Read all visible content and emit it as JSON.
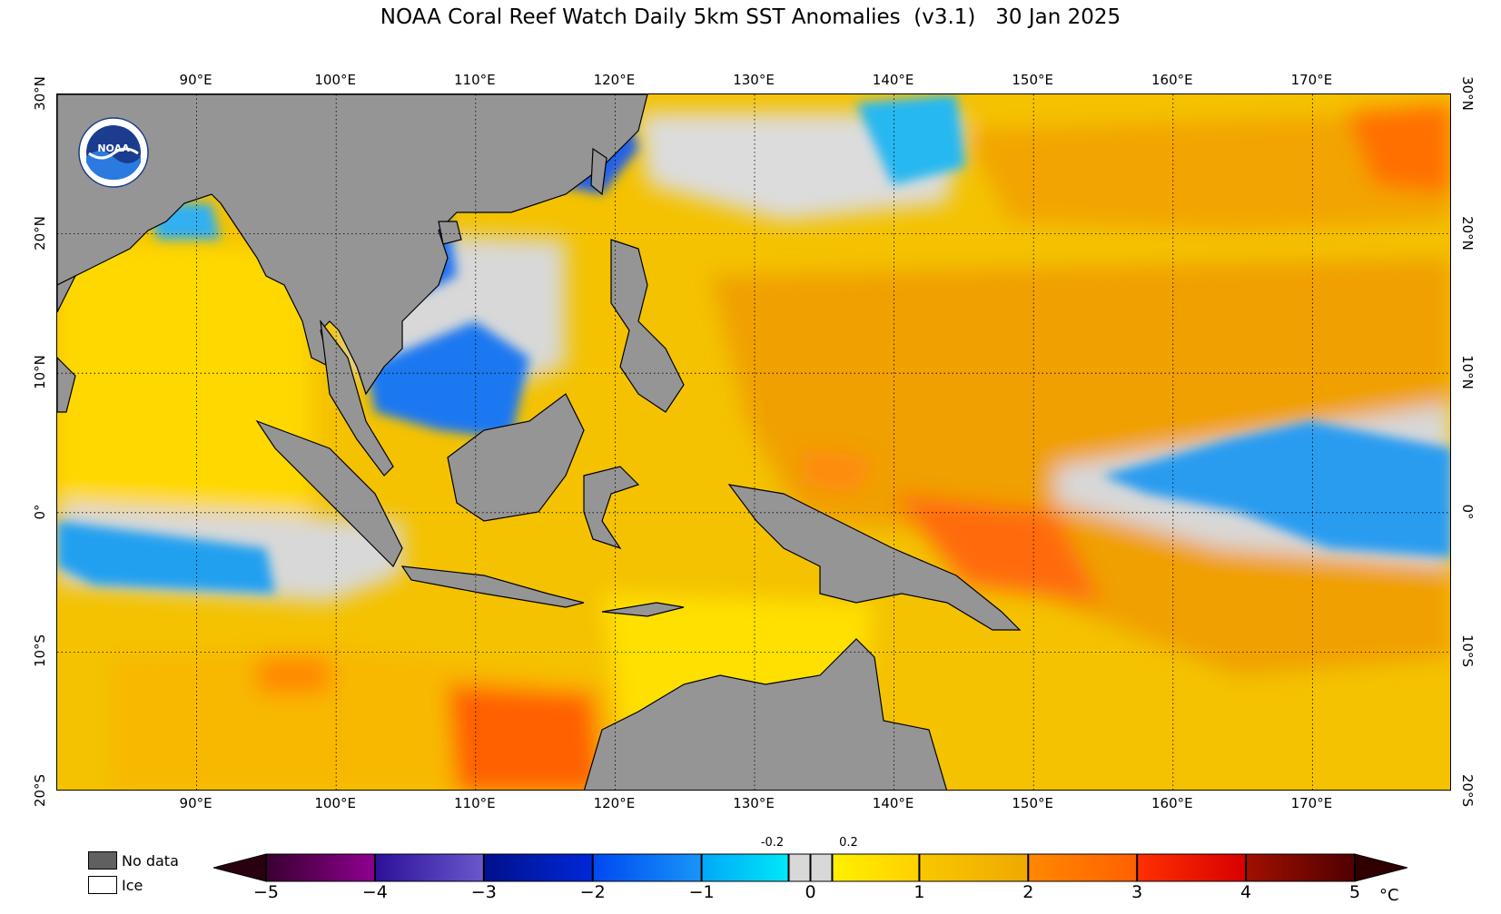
{
  "title": "NOAA Coral Reef Watch Daily 5km SST Anomalies  (v3.1)   30 Jan 2025",
  "map": {
    "lon_range": [
      80,
      180
    ],
    "lat_range": [
      -20,
      30
    ],
    "lon_labels": [
      "90°E",
      "100°E",
      "110°E",
      "120°E",
      "130°E",
      "140°E",
      "150°E",
      "160°E",
      "170°E"
    ],
    "lon_values": [
      90,
      100,
      110,
      120,
      130,
      140,
      150,
      160,
      170
    ],
    "lat_labels": [
      "30°N",
      "20°N",
      "10°N",
      "0°",
      "10°S",
      "20°S"
    ],
    "lat_values": [
      30,
      20,
      10,
      0,
      -10,
      -20
    ],
    "gridlines": "dotted",
    "land_color": "#959595",
    "logo_icon": "noaa-logo-icon"
  },
  "legend_key": {
    "no_data_label": "No data",
    "no_data_color": "#606060",
    "ice_label": "Ice",
    "ice_color": "#ffffff"
  },
  "colorbar": {
    "unit": "°C",
    "tick_labels": [
      "−5",
      "−4",
      "−3",
      "−2",
      "−1",
      "0",
      "1",
      "2",
      "3",
      "4",
      "5"
    ],
    "tick_values": [
      -5,
      -4,
      -3,
      -2,
      -1,
      0,
      1,
      2,
      3,
      4,
      5
    ],
    "small_labels": [
      "-0.2",
      "0.2"
    ],
    "small_values": [
      -0.2,
      0.2
    ],
    "segments": [
      {
        "from": -5,
        "to": -4,
        "colors": [
          "#3a0030",
          "#8e0090"
        ]
      },
      {
        "from": -4,
        "to": -3,
        "colors": [
          "#2c1098",
          "#6a58cc"
        ]
      },
      {
        "from": -3,
        "to": -2,
        "colors": [
          "#00108c",
          "#0028d8"
        ]
      },
      {
        "from": -2,
        "to": -1,
        "colors": [
          "#0048f0",
          "#1896f8"
        ]
      },
      {
        "from": -1,
        "to": -0.2,
        "colors": [
          "#00a8f8",
          "#00e8f8"
        ]
      },
      {
        "from": -0.2,
        "to": 0.2,
        "colors": [
          "#d8d8d8",
          "#d8d8d8"
        ]
      },
      {
        "from": 0.2,
        "to": 1,
        "colors": [
          "#fff000",
          "#ffd000"
        ]
      },
      {
        "from": 1,
        "to": 2,
        "colors": [
          "#f8c800",
          "#f0a800"
        ]
      },
      {
        "from": 2,
        "to": 3,
        "colors": [
          "#ff8800",
          "#ff6000"
        ]
      },
      {
        "from": 3,
        "to": 4,
        "colors": [
          "#ff3000",
          "#d80000"
        ]
      },
      {
        "from": 4,
        "to": 5,
        "colors": [
          "#a01000",
          "#500000"
        ]
      }
    ],
    "under_color": "#2a0010",
    "over_color": "#300000"
  }
}
